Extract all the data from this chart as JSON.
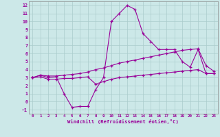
{
  "xlabel": "Windchill (Refroidissement éolien,°C)",
  "xlim": [
    -0.5,
    23.5
  ],
  "ylim": [
    -1.5,
    12.5
  ],
  "xticks": [
    0,
    1,
    2,
    3,
    4,
    5,
    6,
    7,
    8,
    9,
    10,
    11,
    12,
    13,
    14,
    15,
    16,
    17,
    18,
    19,
    20,
    21,
    22,
    23
  ],
  "yticks": [
    -1,
    0,
    1,
    2,
    3,
    4,
    5,
    6,
    7,
    8,
    9,
    10,
    11,
    12
  ],
  "bg_color": "#cce8e8",
  "line_color": "#990099",
  "grid_color": "#aacccc",
  "line1_x": [
    0,
    1,
    2,
    3,
    4,
    5,
    6,
    7,
    8,
    9,
    10,
    11,
    12,
    13,
    14,
    15,
    16,
    17,
    18,
    19,
    20,
    21,
    22,
    23
  ],
  "line1_y": [
    3.0,
    3.3,
    3.0,
    3.1,
    1.0,
    -0.7,
    -0.6,
    -0.6,
    1.5,
    3.0,
    10.0,
    11.0,
    12.0,
    11.5,
    8.5,
    7.5,
    6.5,
    6.5,
    6.5,
    5.0,
    4.3,
    6.5,
    3.5,
    3.5
  ],
  "line2_x": [
    0,
    1,
    2,
    3,
    4,
    5,
    6,
    7,
    8,
    9,
    10,
    11,
    12,
    13,
    14,
    15,
    16,
    17,
    18,
    19,
    20,
    21,
    22,
    23
  ],
  "line2_y": [
    3.0,
    3.3,
    3.2,
    3.2,
    3.3,
    3.4,
    3.5,
    3.7,
    4.0,
    4.2,
    4.5,
    4.8,
    5.0,
    5.2,
    5.4,
    5.6,
    5.8,
    6.0,
    6.2,
    6.4,
    6.5,
    6.6,
    4.5,
    3.8
  ],
  "line3_x": [
    0,
    1,
    2,
    3,
    4,
    5,
    6,
    7,
    8,
    9,
    10,
    11,
    12,
    13,
    14,
    15,
    16,
    17,
    18,
    19,
    20,
    21,
    22,
    23
  ],
  "line3_y": [
    3.0,
    3.1,
    2.8,
    2.8,
    2.9,
    2.9,
    3.0,
    3.1,
    2.2,
    2.5,
    2.8,
    3.0,
    3.1,
    3.2,
    3.3,
    3.4,
    3.5,
    3.6,
    3.7,
    3.8,
    3.9,
    4.0,
    3.5,
    3.5
  ]
}
